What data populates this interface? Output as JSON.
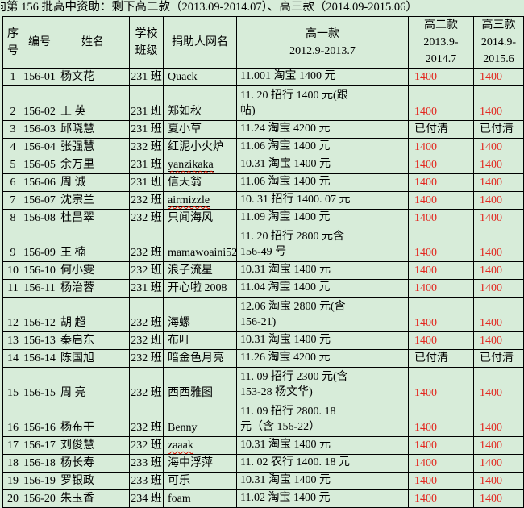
{
  "title": {
    "clipped_char": "向",
    "text": "第 156 批高中资助：剩下高二款（2013.09-2014.07）、高三款（2014.09-2015.06）"
  },
  "colors": {
    "background": "#d7ecd9",
    "border": "#000000",
    "amount_red": "#e3261e",
    "text": "#000000",
    "misspell_underline": "#dd1100"
  },
  "table": {
    "columns": [
      {
        "key": "sn",
        "label_lines": [
          "序",
          "号"
        ]
      },
      {
        "key": "id",
        "label_lines": [
          "编号"
        ]
      },
      {
        "key": "name",
        "label_lines": [
          "姓名"
        ]
      },
      {
        "key": "cls",
        "label_lines": [
          "学校",
          "班级"
        ]
      },
      {
        "key": "donor",
        "label_lines": [
          "捐助人网名"
        ]
      },
      {
        "key": "y1",
        "label_lines": [
          "高一款",
          "2012.9-2013.7"
        ]
      },
      {
        "key": "y2",
        "label_lines": [
          "高二款",
          "2013.9-",
          "2014.7"
        ]
      },
      {
        "key": "y3",
        "label_lines": [
          "高三款",
          "2014.9-",
          "2015.6"
        ]
      }
    ],
    "rows": [
      {
        "sn": "1",
        "id": "156-01",
        "name": "杨文花",
        "cls": "231 班",
        "donor": "Quack",
        "donor_misspelled": false,
        "y1_lines": [
          "11.001 淘宝 1400 元"
        ],
        "y2": "1400",
        "y3": "1400"
      },
      {
        "sn": "2",
        "id": "156-02",
        "name": "王 英",
        "cls": "231 班",
        "donor": "郑如秋",
        "donor_misspelled": false,
        "y1_lines": [
          "11. 20 招行 1400 元(跟",
          "帖)"
        ],
        "y2": "1400",
        "y3": "1400"
      },
      {
        "sn": "3",
        "id": "156-03",
        "name": "邱晓慧",
        "cls": "231 班",
        "donor": "夏小草",
        "donor_misspelled": false,
        "y1_lines": [
          "11.24 淘宝 4200 元"
        ],
        "y2": "已付清",
        "y3": "已付清"
      },
      {
        "sn": "4",
        "id": "156-04",
        "name": "张强慧",
        "cls": "232 班",
        "donor": "红泥小火炉",
        "donor_misspelled": false,
        "y1_lines": [
          "11.06 淘宝 1400 元"
        ],
        "y2": "1400",
        "y3": "1400"
      },
      {
        "sn": "5",
        "id": "156-05",
        "name": "余万里",
        "cls": "231 班",
        "donor": "yanzikaka",
        "donor_misspelled": true,
        "y1_lines": [
          "10.31 淘宝 1400 元"
        ],
        "y2": "1400",
        "y3": "1400"
      },
      {
        "sn": "6",
        "id": "156-06",
        "name": "周 诚",
        "cls": "231 班",
        "donor": "信天翁",
        "donor_misspelled": false,
        "y1_lines": [
          "11.06 淘宝 1400 元"
        ],
        "y2": "1400",
        "y3": "1400"
      },
      {
        "sn": "7",
        "id": "156-07",
        "name": "沈宗兰",
        "cls": "232 班",
        "donor": "airmizzle",
        "donor_misspelled": true,
        "y1_lines": [
          "10. 31 招行 1400. 07 元"
        ],
        "y2": "1400",
        "y3": "1400"
      },
      {
        "sn": "8",
        "id": "156-08",
        "name": "杜昌翠",
        "cls": "232 班",
        "donor": "只闻海风",
        "donor_misspelled": false,
        "y1_lines": [
          "11.09 淘宝 1400 元"
        ],
        "y2": "1400",
        "y3": "1400"
      },
      {
        "sn": "9",
        "id": "156-09",
        "name": "王 楠",
        "cls": "232 班",
        "donor": "mamawoaini52",
        "donor_misspelled": false,
        "y1_lines": [
          "11. 20 招行 2800 元含",
          "156-49 号"
        ],
        "y2": "1400",
        "y3": "1400"
      },
      {
        "sn": "10",
        "id": "156-10",
        "name": "何小雯",
        "cls": "232 班",
        "donor": "浪子流星",
        "donor_misspelled": false,
        "y1_lines": [
          "10.31 淘宝 1400 元"
        ],
        "y2": "1400",
        "y3": "1400"
      },
      {
        "sn": "11",
        "id": "156-11",
        "name": "杨治蓉",
        "cls": "231 班",
        "donor": "开心啦 2008",
        "donor_misspelled": false,
        "y1_lines": [
          "11.04 淘宝 1400 元"
        ],
        "y2": "1400",
        "y3": "1400"
      },
      {
        "sn": "12",
        "id": "156-12",
        "name": "胡 超",
        "cls": "232 班",
        "donor": "海螺",
        "donor_misspelled": false,
        "y1_lines": [
          "12.06 淘宝 2800 元(含",
          "156-21)"
        ],
        "y2": "1400",
        "y3": "1400"
      },
      {
        "sn": "13",
        "id": "156-13",
        "name": "秦启东",
        "cls": "232 班",
        "donor": "布叮",
        "donor_misspelled": false,
        "y1_lines": [
          "10.31 淘宝 1400 元"
        ],
        "y2": "1400",
        "y3": "1400"
      },
      {
        "sn": "14",
        "id": "156-14",
        "name": "陈国旭",
        "cls": "232 班",
        "donor": "暗金色月亮",
        "donor_misspelled": false,
        "y1_lines": [
          "11.26 淘宝 4200 元"
        ],
        "y2": "已付清",
        "y3": "已付清"
      },
      {
        "sn": "15",
        "id": "156-15",
        "name": "周 亮",
        "cls": "232 班",
        "donor": "西西雅图",
        "donor_misspelled": false,
        "y1_lines": [
          "11. 09 招行 2300 元(含",
          "153-28 杨文华)"
        ],
        "y2": "1400",
        "y3": "1400"
      },
      {
        "sn": "16",
        "id": "156-16",
        "name": "杨布干",
        "cls": "232 班",
        "donor": "Benny",
        "donor_misspelled": false,
        "y1_lines": [
          "11. 09 招行 2800. 18",
          "元（含 156-22）"
        ],
        "y2": "1400",
        "y3": "1400"
      },
      {
        "sn": "17",
        "id": "156-17",
        "name": "刘俊慧",
        "cls": "232 班",
        "donor": "zaaak",
        "donor_misspelled": true,
        "y1_lines": [
          "10.31 淘宝 1400 元"
        ],
        "y2": "1400",
        "y3": "1400"
      },
      {
        "sn": "18",
        "id": "156-18",
        "name": "杨长寿",
        "cls": "233 班",
        "donor": "海中浮萍",
        "donor_misspelled": false,
        "y1_lines": [
          "11. 02 农行 1400. 18 元"
        ],
        "y2": "1400",
        "y3": "1400"
      },
      {
        "sn": "19",
        "id": "156-19",
        "name": "罗银政",
        "cls": "233 班",
        "donor": "可乐",
        "donor_misspelled": false,
        "y1_lines": [
          "10.31 淘宝 1400 元"
        ],
        "y2": "1400",
        "y3": "1400"
      },
      {
        "sn": "20",
        "id": "156-20",
        "name": "朱玉香",
        "cls": "234 班",
        "donor": "foam",
        "donor_misspelled": false,
        "y1_lines": [
          "11.02 淘宝 1400 元"
        ],
        "y2": "1400",
        "y3": "1400"
      }
    ]
  }
}
